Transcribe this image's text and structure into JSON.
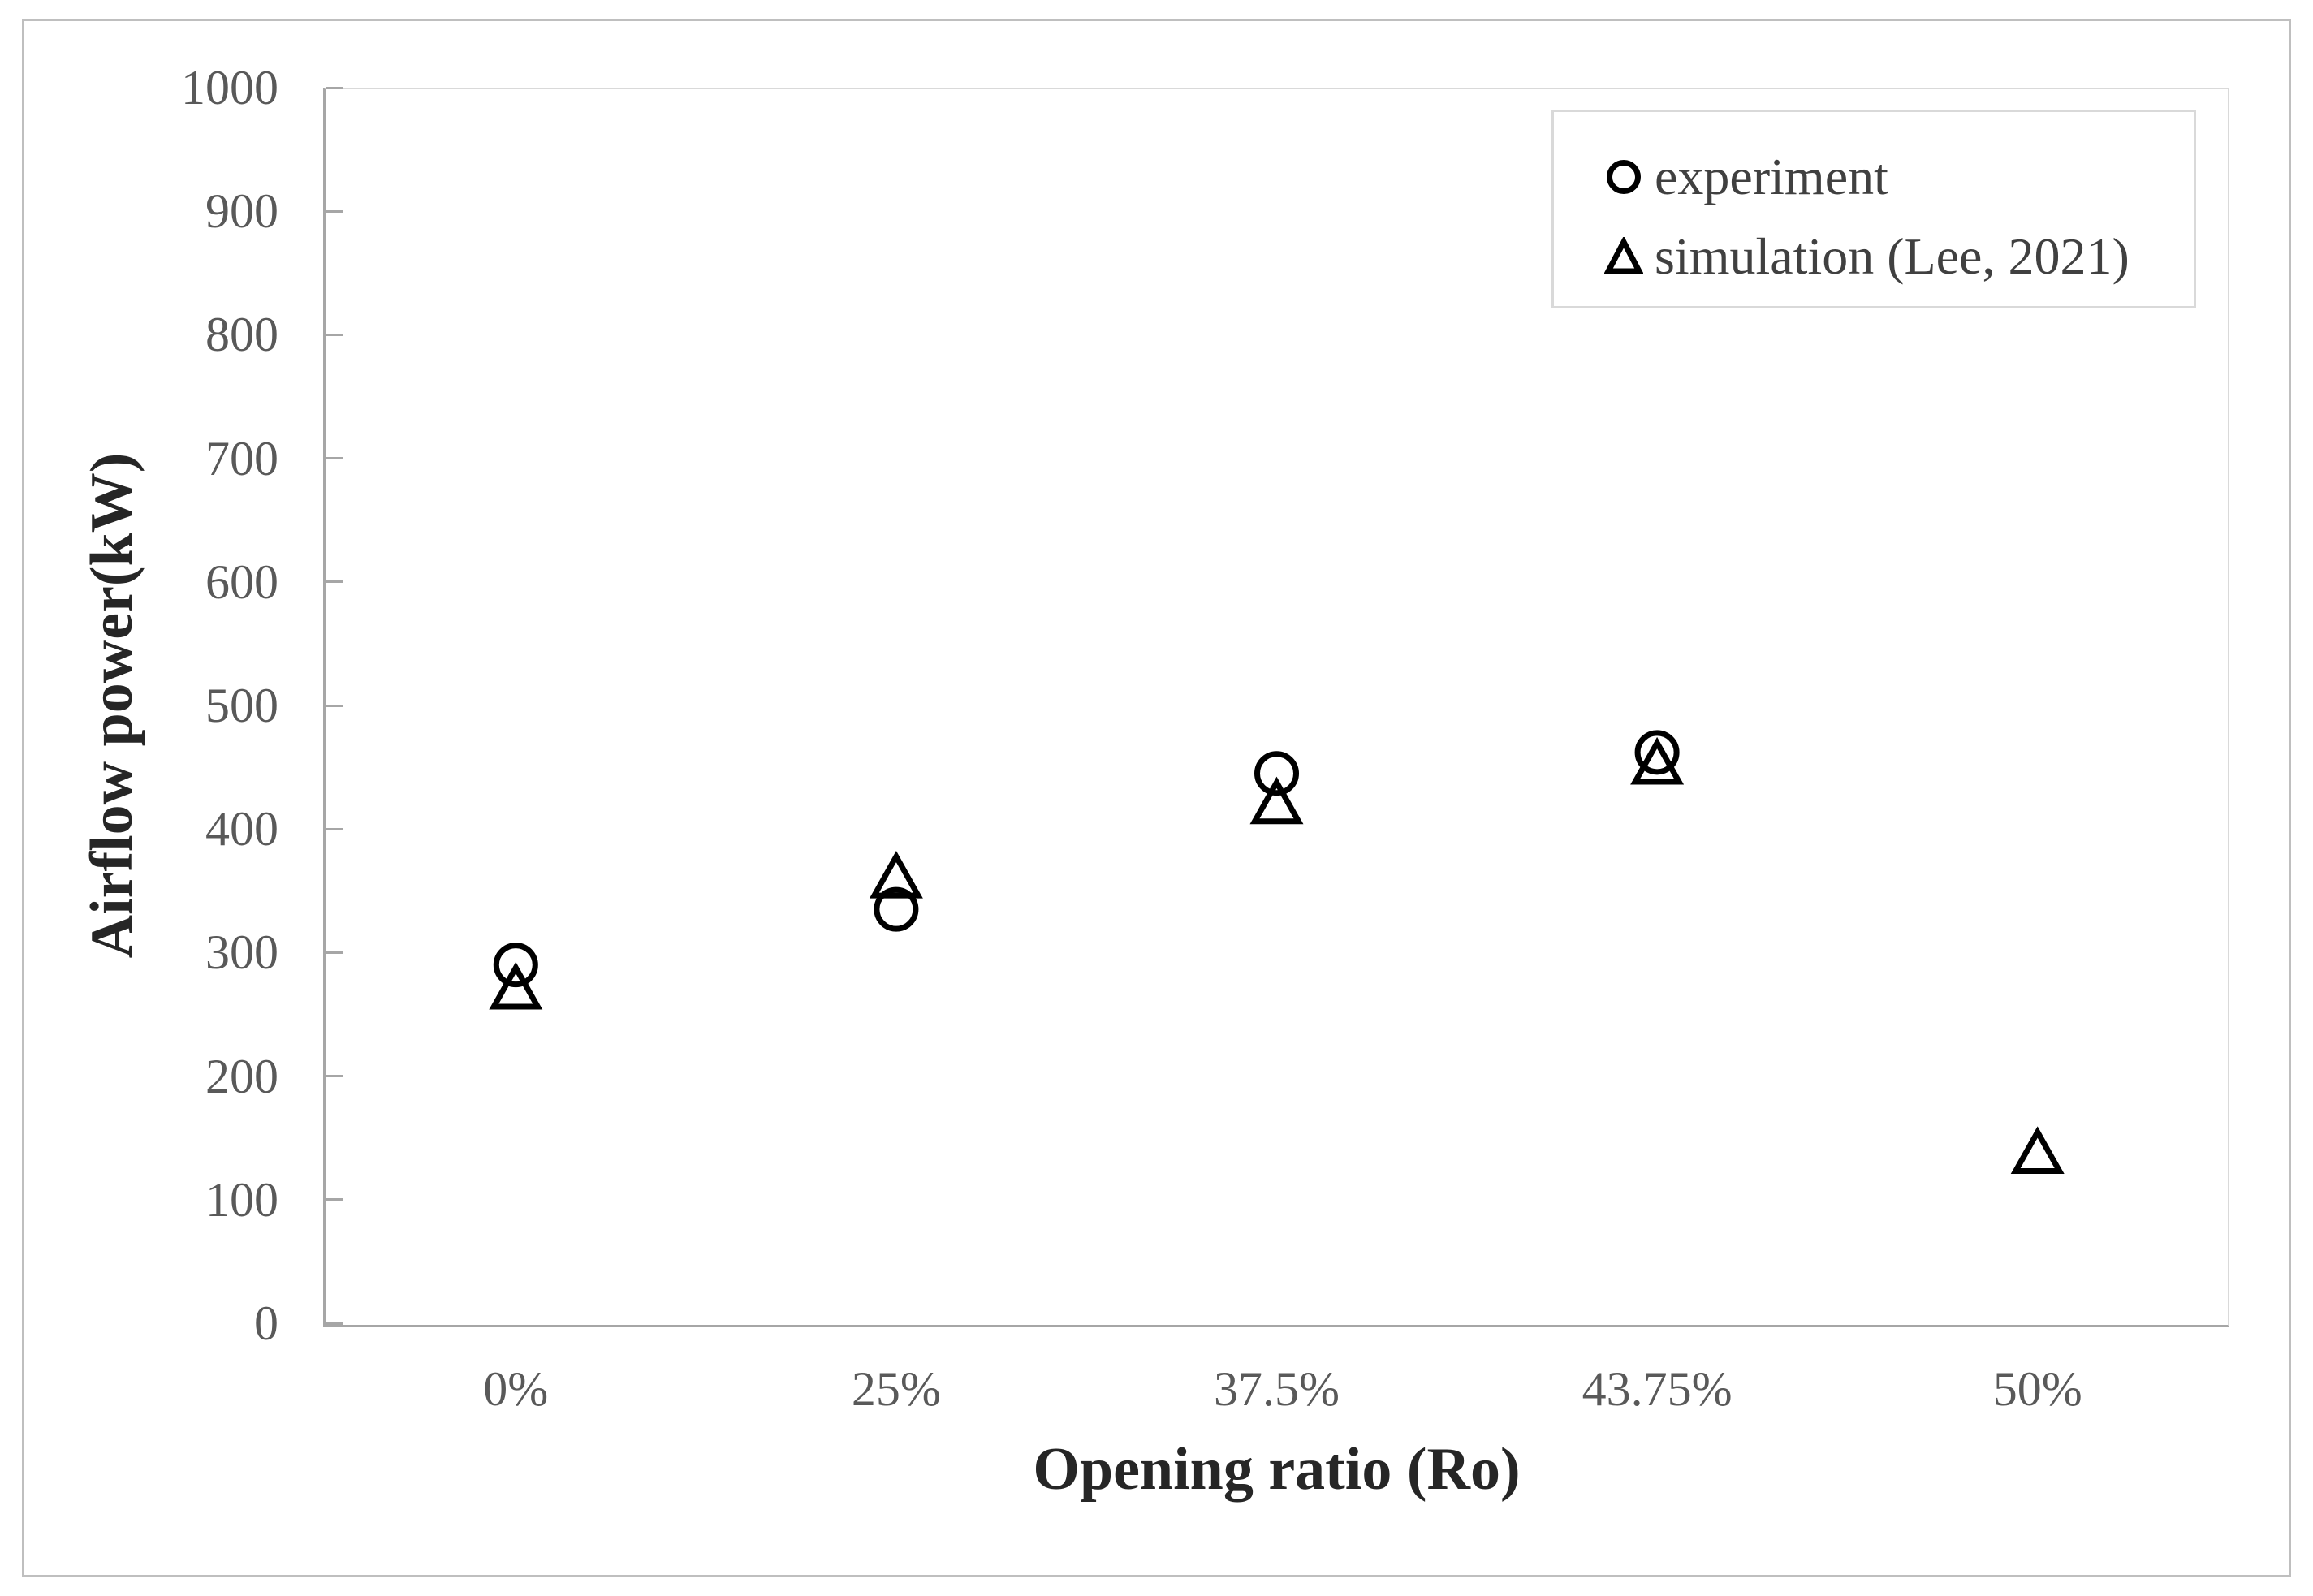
{
  "figure": {
    "type_note": "black-and-white scatter chart"
  },
  "legend": {
    "position": "top-right",
    "items": [
      {
        "marker": "circle",
        "label": "experiment"
      },
      {
        "marker": "triangle",
        "label": "simulation (Lee, 2021)"
      }
    ]
  },
  "chart_data": {
    "type": "scatter",
    "title": "",
    "xlabel": "Opening ratio (Ro)",
    "ylabel": "Airflow power(kW)",
    "categories": [
      "0%",
      "25%",
      "37.5%",
      "43.75%",
      "50%"
    ],
    "series": [
      {
        "name": "experiment",
        "marker": "circle",
        "values": [
          290,
          335,
          445,
          462,
          null
        ]
      },
      {
        "name": "simulation (Lee, 2021)",
        "marker": "triangle",
        "values": [
          270,
          360,
          420,
          452,
          137
        ]
      }
    ],
    "ylim": [
      0,
      1000
    ],
    "yticks": [
      0,
      100,
      200,
      300,
      400,
      500,
      600,
      700,
      800,
      900,
      1000
    ],
    "grid": false,
    "legend_position": "top-right"
  },
  "colors": {
    "marker": "#000000",
    "axis_line": "#a6a6a6",
    "light_border": "#d9d9d9",
    "outer_border": "#bfbfbf",
    "tick_text": "#595959",
    "title_text": "#262626",
    "background": "#ffffff"
  }
}
